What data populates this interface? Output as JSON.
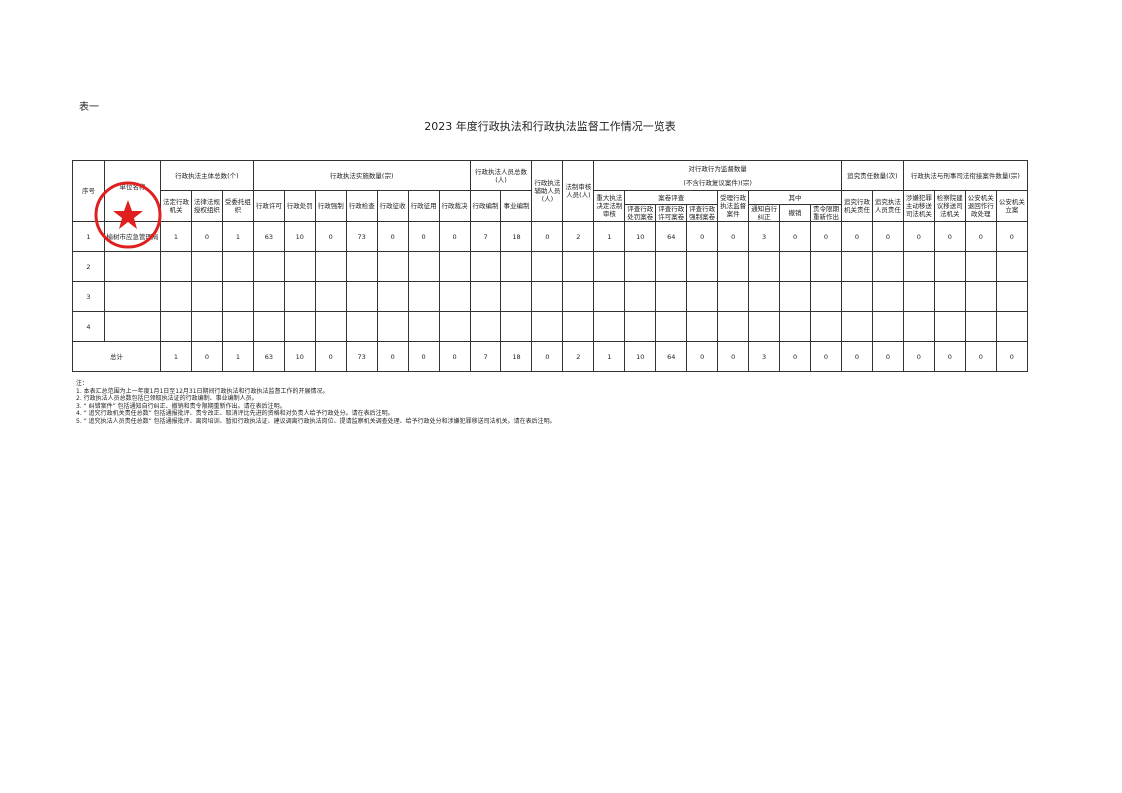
{
  "label": "表一",
  "title": "2023 年度行政执法和行政执法监督工作情况一览表",
  "headers": {
    "seq": "序号",
    "unit": "单位名称",
    "subject_total": "行政执法主体总数(个)",
    "subject": [
      "法定行政机关",
      "法律法规授权组织",
      "受委托组织"
    ],
    "impl_total": "行政执法实施数量(宗)",
    "impl": [
      "行政许可",
      "行政处罚",
      "行政强制",
      "行政检查",
      "行政征收",
      "行政征用",
      "行政裁决"
    ],
    "staff_total": "行政执法人员总数(人)",
    "staff": [
      "行政编制",
      "事业编制"
    ],
    "aux": "行政执法辅助人员(人)",
    "legal": "法制审核人员(人)",
    "supervise_total": "对行政行为监督数量",
    "supervise_sub": "(不含行政复议案件)(宗)",
    "major": "重大执法决定法制审核",
    "review": "案卷评查",
    "review_items": [
      "评查行政处罚案卷",
      "评查行政许可案卷",
      "评查行政强制案卷"
    ],
    "accept": "受理行政执法监督案件",
    "among": "其中",
    "among_items": [
      "通知自行纠正",
      "撤销",
      "责令限期重新作出"
    ],
    "account_total": "追究责任数量(次)",
    "account": [
      "追究行政机关责任",
      "追究执法人员责任"
    ],
    "link_total": "行政执法与刑事司法衔接案件数量(宗)",
    "link": [
      "涉嫌犯罪主动移送司法机关",
      "检察院建议移送司法机关",
      "公安机关退回作行政处理",
      "公安机关立案"
    ]
  },
  "rows": [
    {
      "seq": "1",
      "unit": "榆树市应急管理局",
      "values": [
        "1",
        "0",
        "1",
        "63",
        "10",
        "0",
        "73",
        "0",
        "0",
        "0",
        "7",
        "18",
        "0",
        "2",
        "1",
        "10",
        "64",
        "0",
        "0",
        "3",
        "0",
        "0",
        "0",
        "0",
        "0",
        "0",
        "0",
        "0"
      ]
    },
    {
      "seq": "2",
      "unit": "",
      "values": []
    },
    {
      "seq": "3",
      "unit": "",
      "values": []
    },
    {
      "seq": "4",
      "unit": "",
      "values": []
    }
  ],
  "total": {
    "label": "总计",
    "values": [
      "1",
      "0",
      "1",
      "63",
      "10",
      "0",
      "73",
      "0",
      "0",
      "0",
      "7",
      "18",
      "0",
      "2",
      "1",
      "10",
      "64",
      "0",
      "0",
      "3",
      "0",
      "0",
      "0",
      "0",
      "0",
      "0",
      "0",
      "0"
    ]
  },
  "notes": [
    "注：",
    "1. 本表汇总范围为上一年度1月1日至12月31日期间行政执法和行政执法监督工作的开展情况。",
    "2. 行政执法人员总数包括已领取执法证的行政编制、事业编制人员。",
    "3. “ 纠错案件” 包括通知自行纠正、撤销和责令限期重新作出。请在表后注明。",
    "4. “ 追究行政机关责任总数” 包括通报批评、责令改正、取消评比先进的资格和对负责人给予行政处分。请在表后注明。",
    "5. “ 追究执法人员责任总数” 包括通报批评、离岗培训、暂扣行政执法证、建议调离行政执法岗位、提请监察机关调查处理、给予行政处分和涉嫌犯罪移送司法机关。请在表后注明。"
  ],
  "stamp_color": "#e02020"
}
